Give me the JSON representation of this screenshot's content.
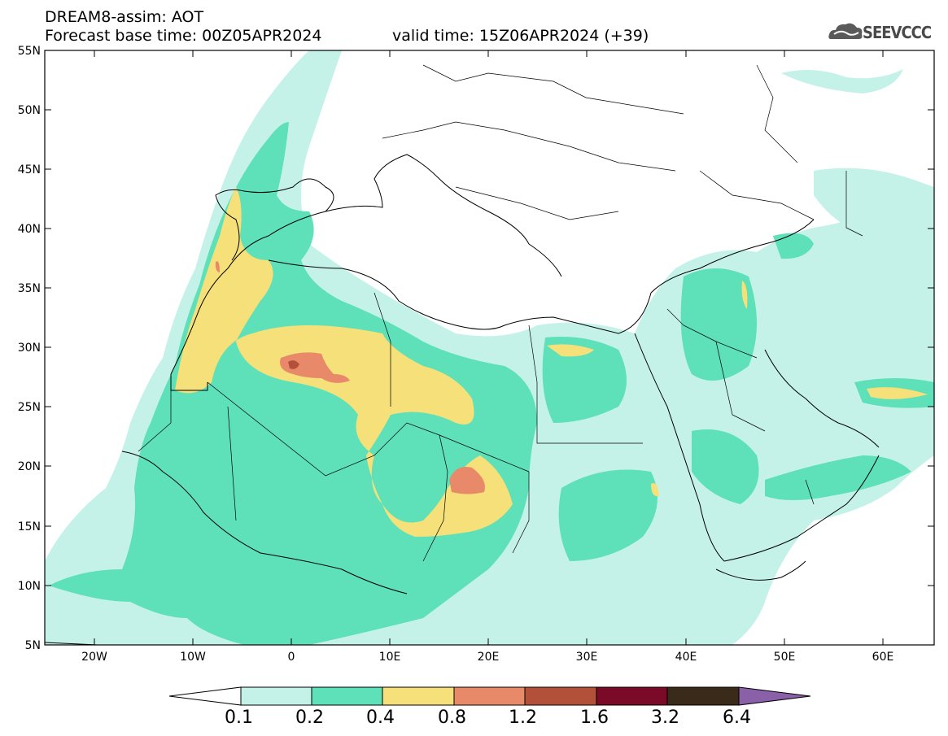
{
  "header": {
    "title": "DREAM8-assim: AOT",
    "base_time": "Forecast base time: 00Z05APR2024",
    "valid_time": "valid time: 15Z06APR2024 (+39)",
    "logo_text": "SEEVCCC"
  },
  "axes": {
    "lat_labels": [
      "55N",
      "50N",
      "45N",
      "40N",
      "35N",
      "30N",
      "25N",
      "20N",
      "15N",
      "10N",
      "5N"
    ],
    "lon_labels": [
      "20W",
      "10W",
      "0",
      "10E",
      "20E",
      "30E",
      "40E",
      "50E",
      "60E"
    ]
  },
  "colorbar": {
    "labels": [
      "0.1",
      "0.2",
      "0.4",
      "0.8",
      "1.2",
      "1.6",
      "3.2",
      "6.4"
    ],
    "colors": [
      "#ffffff",
      "#c5f2e8",
      "#5ee0b8",
      "#f5e07a",
      "#e88a6a",
      "#b3503a",
      "#7a0a28",
      "#3a2a1a",
      "#8a60a8"
    ]
  },
  "map": {
    "variable": "AOT",
    "region": "North Africa / Middle East / Europe",
    "lon_range": [
      -25,
      65
    ],
    "lat_range": [
      5,
      55
    ]
  }
}
